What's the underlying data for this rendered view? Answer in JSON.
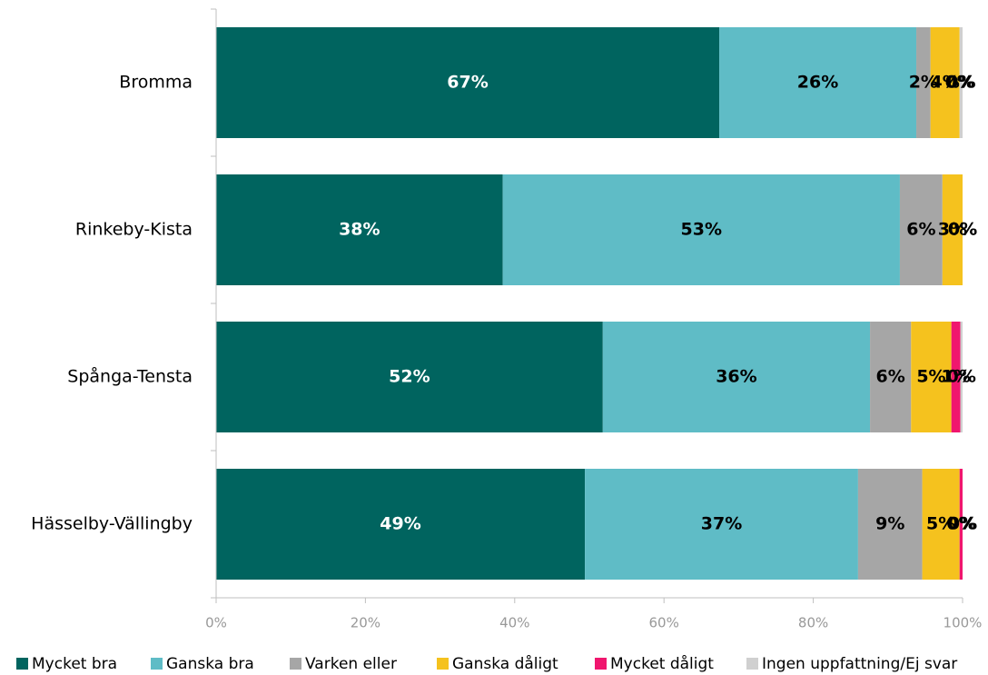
{
  "chart_data": {
    "type": "stacked_barh",
    "categories": [
      "Bromma",
      "Rinkeby-Kista",
      "Spånga-Tensta",
      "Hässelby-Vällingby"
    ],
    "series": [
      {
        "name": "Mycket bra",
        "color": "#00645f",
        "values": [
          67.4,
          38.4,
          51.8,
          49.4
        ],
        "value_labels": [
          "67%",
          "38%",
          "52%",
          "49%"
        ]
      },
      {
        "name": "Ganska bra",
        "color": "#5fbcc6",
        "values": [
          26.4,
          53.2,
          35.8,
          36.6
        ],
        "value_labels": [
          "26%",
          "53%",
          "36%",
          "37%"
        ]
      },
      {
        "name": "Varken eller",
        "color": "#a6a6a6",
        "values": [
          1.9,
          5.7,
          5.5,
          8.6
        ],
        "value_labels": [
          "2%",
          "6%",
          "6%",
          "9%"
        ]
      },
      {
        "name": "Ganska dåligt",
        "color": "#f5c21e",
        "values": [
          3.9,
          2.7,
          5.4,
          5.0
        ],
        "value_labels": [
          "4%",
          "3%",
          "5%",
          "5%"
        ]
      },
      {
        "name": "Mycket dåligt",
        "color": "#f0166e",
        "values": [
          0,
          0,
          1.2,
          0.4
        ],
        "value_labels": [
          "0%",
          "0%",
          "1%",
          "0%"
        ]
      },
      {
        "name": "Ingen uppfattning/Ej svar",
        "color": "#d0d0d0",
        "values": [
          0.4,
          0,
          0.3,
          0
        ],
        "value_labels": [
          "0%",
          "0%",
          "0%",
          "0%"
        ]
      }
    ],
    "xlim": [
      0,
      100
    ],
    "xticks": [
      {
        "value": 0,
        "label": "0%"
      },
      {
        "value": 20,
        "label": "20%"
      },
      {
        "value": 40,
        "label": "40%"
      },
      {
        "value": 60,
        "label": "60%"
      },
      {
        "value": 80,
        "label": "80%"
      },
      {
        "value": 100,
        "label": "100%"
      }
    ]
  }
}
